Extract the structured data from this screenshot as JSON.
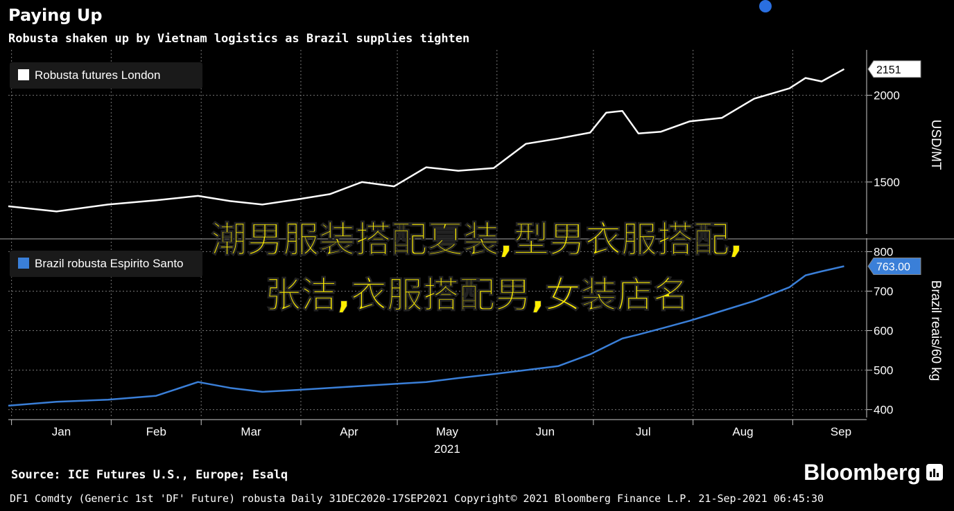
{
  "title": "Paying Up",
  "subtitle": "Robusta shaken up by Vietnam logistics as Brazil supplies tighten",
  "source": "Source: ICE Futures U.S., Europe; Esalq",
  "brand": "Bloomberg",
  "footer": "DF1 Comdty (Generic 1st 'DF' Future) robusta  Daily 31DEC2020-17SEP2021  Copyright© 2021 Bloomberg Finance L.P.  21-Sep-2021 06:45:30",
  "overlay": {
    "line1": "潮男服装搭配夏装,型男衣服搭配,",
    "line2": "张洁,衣服搭配男,女装店名"
  },
  "colors": {
    "top_series": "#ffffff",
    "bottom_series": "#3a7fd8",
    "background": "#000000",
    "overlay_text": "#ffee00"
  },
  "chart_data": [
    {
      "type": "line",
      "legend": "top-left",
      "grid": true,
      "ylabel": "USD/MT",
      "ylim": [
        1200,
        2230
      ],
      "yticks": [
        1500,
        2000
      ],
      "last_value_label": "2151",
      "series": [
        {
          "name": "Robusta futures London",
          "x": [
            "2020-12-31",
            "2021-01-15",
            "2021-01-31",
            "2021-02-15",
            "2021-02-28",
            "2021-03-10",
            "2021-03-20",
            "2021-03-31",
            "2021-04-10",
            "2021-04-20",
            "2021-04-30",
            "2021-05-10",
            "2021-05-20",
            "2021-05-31",
            "2021-06-10",
            "2021-06-20",
            "2021-06-30",
            "2021-07-05",
            "2021-07-10",
            "2021-07-15",
            "2021-07-22",
            "2021-07-31",
            "2021-08-10",
            "2021-08-20",
            "2021-08-31",
            "2021-09-05",
            "2021-09-10",
            "2021-09-17"
          ],
          "values": [
            1360,
            1330,
            1370,
            1395,
            1420,
            1390,
            1370,
            1400,
            1430,
            1500,
            1475,
            1585,
            1565,
            1580,
            1720,
            1750,
            1785,
            1900,
            1910,
            1780,
            1790,
            1850,
            1870,
            1980,
            2040,
            2100,
            2080,
            2151
          ]
        }
      ]
    },
    {
      "type": "line",
      "legend": "top-left",
      "grid": true,
      "ylabel": "Brazil reais/60 kg",
      "ylim": [
        380,
        820
      ],
      "yticks": [
        400,
        500,
        600,
        700,
        800
      ],
      "last_value_label": "763.00",
      "series": [
        {
          "name": "Brazil robusta Espirito Santo",
          "x": [
            "2020-12-31",
            "2021-01-15",
            "2021-01-31",
            "2021-02-15",
            "2021-02-28",
            "2021-03-10",
            "2021-03-20",
            "2021-03-31",
            "2021-04-10",
            "2021-04-20",
            "2021-04-30",
            "2021-05-10",
            "2021-05-20",
            "2021-05-31",
            "2021-06-10",
            "2021-06-20",
            "2021-06-30",
            "2021-07-05",
            "2021-07-10",
            "2021-07-15",
            "2021-07-22",
            "2021-07-31",
            "2021-08-10",
            "2021-08-20",
            "2021-08-31",
            "2021-09-05",
            "2021-09-10",
            "2021-09-17"
          ],
          "values": [
            410,
            420,
            425,
            435,
            470,
            455,
            445,
            450,
            455,
            460,
            465,
            470,
            480,
            490,
            500,
            510,
            540,
            560,
            580,
            590,
            605,
            625,
            650,
            675,
            710,
            740,
            750,
            763
          ]
        }
      ]
    }
  ],
  "x_axis": {
    "ticks": [
      "Jan",
      "Feb",
      "Mar",
      "Apr",
      "May",
      "Jun",
      "Jul",
      "Aug",
      "Sep"
    ],
    "year": "2021"
  }
}
